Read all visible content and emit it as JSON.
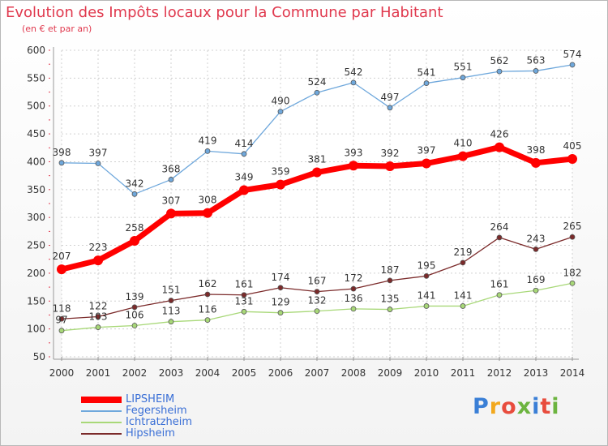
{
  "title": "Evolution des Impôts locaux pour la Commune par Habitant",
  "subtitle": "(en € et par an)",
  "logo": {
    "letters": [
      "P",
      "r",
      "o",
      "x",
      "i",
      "t",
      "i"
    ],
    "colors": [
      "#3a7fd6",
      "#f2a81d",
      "#e84c3d",
      "#6cb43f",
      "#3a7fd6",
      "#e84c3d",
      "#6cb43f"
    ]
  },
  "chart_data": {
    "type": "line",
    "title": "Evolution des Impôts locaux pour la Commune par Habitant",
    "subtitle": "(en € et par an)",
    "x": [
      2000,
      2001,
      2002,
      2003,
      2004,
      2005,
      2006,
      2007,
      2008,
      2009,
      2010,
      2011,
      2012,
      2013,
      2014
    ],
    "ylim": [
      50,
      600
    ],
    "yticks": [
      50,
      100,
      150,
      200,
      250,
      300,
      350,
      400,
      450,
      500,
      550,
      600
    ],
    "grid": true,
    "legend_position": "bottom-left",
    "series": [
      {
        "name": "LIPSHEIM",
        "color": "#ff0000",
        "values": [
          207,
          223,
          258,
          307,
          308,
          349,
          359,
          381,
          393,
          392,
          397,
          410,
          426,
          398,
          405
        ]
      },
      {
        "name": "Fegersheim",
        "color": "#6fa8dc",
        "values": [
          398,
          397,
          342,
          368,
          419,
          414,
          490,
          524,
          542,
          497,
          541,
          551,
          562,
          563,
          574
        ]
      },
      {
        "name": "Ichtratzheim",
        "color": "#a8d878",
        "values": [
          97,
          103,
          106,
          113,
          116,
          131,
          129,
          132,
          136,
          135,
          141,
          141,
          161,
          169,
          182
        ]
      },
      {
        "name": "Hipsheim",
        "color": "#7b2a2a",
        "values": [
          118,
          122,
          139,
          151,
          162,
          161,
          174,
          167,
          172,
          187,
          195,
          219,
          264,
          243,
          265
        ]
      }
    ]
  }
}
